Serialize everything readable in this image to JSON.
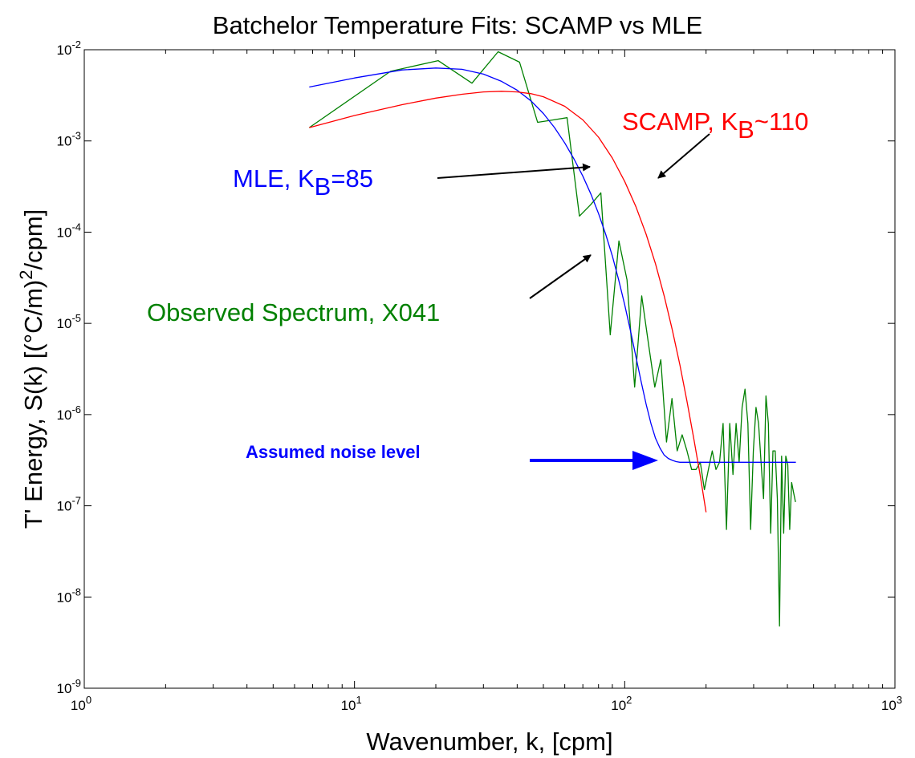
{
  "chart_data": {
    "type": "line",
    "title": "Batchelor Temperature Fits: SCAMP vs MLE",
    "xlabel": "Wavenumber, k, [cpm]",
    "ylabel": {
      "prefix": "T' Energy, S(k) [(°C/m)",
      "sup": "2",
      "suffix": "/cpm]"
    },
    "x_scale": "log",
    "y_scale": "log",
    "xlim": [
      1,
      1000
    ],
    "ylim": [
      1e-09,
      0.01
    ],
    "grid": false,
    "x_ticks": [
      {
        "base": "10",
        "exp": "0",
        "value": 1
      },
      {
        "base": "10",
        "exp": "1",
        "value": 10
      },
      {
        "base": "10",
        "exp": "2",
        "value": 100
      },
      {
        "base": "10",
        "exp": "3",
        "value": 1000
      }
    ],
    "y_ticks": [
      {
        "base": "10",
        "exp": "-9",
        "value": 1e-09
      },
      {
        "base": "10",
        "exp": "-8",
        "value": 1e-08
      },
      {
        "base": "10",
        "exp": "-7",
        "value": 1e-07
      },
      {
        "base": "10",
        "exp": "-6",
        "value": 1e-06
      },
      {
        "base": "10",
        "exp": "-5",
        "value": 1e-05
      },
      {
        "base": "10",
        "exp": "-4",
        "value": 0.0001
      },
      {
        "base": "10",
        "exp": "-3",
        "value": 0.001
      },
      {
        "base": "10",
        "exp": "-2",
        "value": 0.01
      }
    ],
    "series": [
      {
        "id": "observed",
        "color": "#008000",
        "x": [
          6.8,
          13.6,
          20.4,
          27.2,
          34,
          40.8,
          47.6,
          54.4,
          61.2,
          68,
          74.8,
          81.6,
          88.4,
          95.2,
          102,
          108.8,
          115.6,
          122.4,
          129.2,
          136,
          142.8,
          149.6,
          156.4,
          163.2,
          170,
          176.8,
          183.6,
          190.4,
          197.2,
          204,
          210.8,
          217.6,
          224.4,
          231.2,
          238,
          244.8,
          251.6,
          258.4,
          265.2,
          272,
          278.8,
          285.6,
          292.4,
          299.2,
          306,
          312.8,
          319.6,
          326.4,
          333.2,
          340,
          346.8,
          353.6,
          360.4,
          367.2,
          374,
          380.8,
          387.6,
          394.4,
          401.2,
          408,
          414.8,
          421.6,
          428.4
        ],
        "y": [
          0.0014,
          0.0058,
          0.0076,
          0.0043,
          0.0095,
          0.0073,
          0.0016,
          0.0017,
          0.0018,
          0.00015,
          0.0002,
          0.00027,
          7.5e-06,
          8e-05,
          3e-05,
          2e-06,
          2e-05,
          6e-06,
          2e-06,
          4e-06,
          5e-07,
          1.5e-06,
          4e-07,
          6e-07,
          4e-07,
          2.5e-07,
          2.5e-07,
          3e-07,
          1.5e-07,
          2.5e-07,
          4e-07,
          2.5e-07,
          3e-07,
          8e-07,
          5.5e-08,
          8e-07,
          2.2e-07,
          8e-07,
          3e-07,
          1.2e-06,
          1.9e-06,
          8e-07,
          5.5e-08,
          4e-07,
          1.2e-06,
          8e-07,
          3e-07,
          1.2e-07,
          1.6e-06,
          8e-07,
          5e-08,
          4e-07,
          4e-07,
          1.2e-07,
          4.8e-09,
          3.5e-07,
          5e-08,
          3.5e-07,
          2.8e-07,
          5.5e-08,
          1.8e-07,
          1.4e-07,
          1.1e-07
        ]
      },
      {
        "id": "mle",
        "color": "#0000ff",
        "x": [
          6.8,
          10,
          15,
          20,
          25,
          30,
          35,
          40,
          45,
          50,
          55,
          60,
          65,
          70,
          75,
          80,
          85,
          90,
          95,
          100,
          105,
          110,
          115,
          120,
          125,
          130,
          135,
          140,
          145,
          150,
          155,
          160,
          165,
          170,
          175,
          180,
          200,
          250,
          300,
          350,
          400,
          430
        ],
        "y": [
          0.0039,
          0.0049,
          0.006,
          0.0063,
          0.0061,
          0.0054,
          0.0045,
          0.0036,
          0.00275,
          0.002,
          0.0014,
          0.00095,
          0.00063,
          0.00041,
          0.00026,
          0.00016,
          9.5e-05,
          5.5e-05,
          3e-05,
          1.6e-05,
          8.3e-06,
          4.3e-06,
          2.3e-06,
          1.3e-06,
          8e-07,
          5.5e-07,
          4.3e-07,
          3.6e-07,
          3.3e-07,
          3.15e-07,
          3.05e-07,
          3e-07,
          3e-07,
          3e-07,
          3e-07,
          3e-07,
          3e-07,
          3e-07,
          3e-07,
          3e-07,
          3e-07,
          3e-07
        ]
      },
      {
        "id": "scamp",
        "color": "#ff0000",
        "x": [
          6.8,
          10,
          15,
          20,
          25,
          30,
          35,
          40,
          45,
          50,
          60,
          70,
          80,
          90,
          100,
          110,
          120,
          130,
          140,
          150,
          160,
          170,
          180,
          190,
          200
        ],
        "y": [
          0.0014,
          0.0019,
          0.0025,
          0.00295,
          0.00325,
          0.00345,
          0.0035,
          0.00345,
          0.0033,
          0.00305,
          0.0024,
          0.0017,
          0.0011,
          0.00065,
          0.00036,
          0.00019,
          9.5e-05,
          4.5e-05,
          2e-05,
          8.5e-06,
          3.5e-06,
          1.4e-06,
          5.5e-07,
          2.2e-07,
          8.5e-08
        ]
      }
    ],
    "annotations": {
      "scamp": {
        "text": "SCAMP,  K",
        "sub": "B",
        "tail": "~110",
        "color": "#ff0000"
      },
      "mle": {
        "text": "MLE,  K",
        "sub": "B",
        "tail": "=85",
        "color": "#0000ff"
      },
      "observed": {
        "text": "Observed Spectrum, X041",
        "color": "#008000"
      },
      "noise": {
        "text": "Assumed noise level",
        "color": "#0000ff"
      }
    }
  }
}
